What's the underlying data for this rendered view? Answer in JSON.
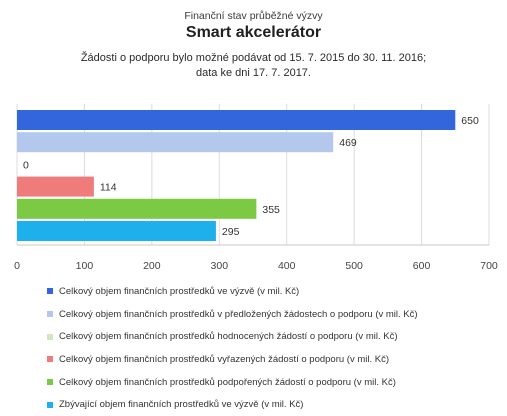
{
  "header": {
    "pretitle": "Finanční stav průběžné výzvy",
    "title": "Smart akcelerátor",
    "subtitle_line1": "Žádosti o podporu bylo možné  podávat od 15. 7. 2015 do 30. 11. 2016;",
    "subtitle_line2": "data ke dni 17. 7. 2017."
  },
  "chart_data": {
    "type": "bar",
    "orientation": "horizontal",
    "xlim": [
      0,
      700
    ],
    "x_ticks": [
      0,
      100,
      200,
      300,
      400,
      500,
      600,
      700
    ],
    "grid": true,
    "legend_position": "bottom",
    "series": [
      {
        "name": "Celkový objem finančních prostředků ve výzvě (v mil. Kč)",
        "value": 650,
        "label": "650",
        "color": "#3366dd"
      },
      {
        "name": "Celkový objem finančních prostředků v předložených žádostech o podporu (v mil. Kč)",
        "value": 469,
        "label": "469",
        "color": "#b4c8ee"
      },
      {
        "name": "Celkový objem finančních prostředků hodnocených žádostí o podporu (v mil. Kč)",
        "value": 0,
        "label": "0",
        "color": "#d6e6bb"
      },
      {
        "name": "Celkový objem finančních prostředků vyřazených žádostí o podporu (v mil. Kč)",
        "value": 114,
        "label": "114",
        "color": "#ef7b7b"
      },
      {
        "name": "Celkový objem finančních prostředků podpořených žádostí o podporu (v mil. Kč)",
        "value": 355,
        "label": "355",
        "color": "#7cc944"
      },
      {
        "name": "Zbývající objem finančních prostředků ve výzvě (v mil. Kč)",
        "value": 295,
        "label": "295",
        "color": "#1eb0ea"
      }
    ]
  }
}
